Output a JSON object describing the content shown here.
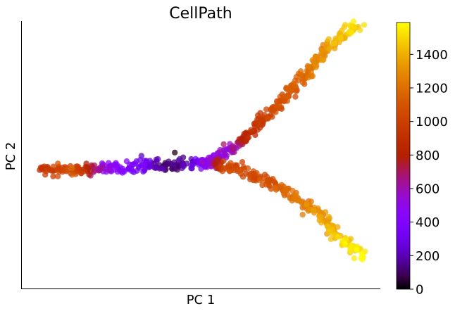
{
  "chart_data": {
    "type": "scatter",
    "title": "CellPath",
    "xlabel": "PC 1",
    "ylabel": "PC 2",
    "xticks": [],
    "yticks": [],
    "grid": false,
    "colorbar": {
      "label": "",
      "range": [
        0,
        1590
      ],
      "ticks": [
        0,
        200,
        400,
        600,
        800,
        1000,
        1200,
        1400
      ],
      "tick_labels": [
        "0",
        "200",
        "400",
        "600",
        "800",
        "1000",
        "1200",
        "1400"
      ],
      "colormap": "gnuplot"
    },
    "xlim": [
      -1.05,
      1.05
    ],
    "ylim": [
      -0.8,
      1.0
    ],
    "point_alpha": 0.75,
    "trajectory": {
      "description_of_paths": "Points follow a continuous trajectory; value colors each cell",
      "paths": [
        {
          "name": "",
          "nodes": [
            {
              "x": -0.94,
              "y": 0.0,
              "value": 900
            },
            {
              "x": -0.75,
              "y": 0.0,
              "value": 1050
            },
            {
              "x": -0.58,
              "y": 0.01,
              "value": 520
            },
            {
              "x": -0.35,
              "y": 0.02,
              "value": 330
            },
            {
              "x": -0.2,
              "y": 0.03,
              "value": 80
            },
            {
              "x": -0.07,
              "y": 0.03,
              "value": 180
            },
            {
              "x": 0.02,
              "y": 0.05,
              "value": 420
            }
          ]
        },
        {
          "name": "",
          "nodes": [
            {
              "x": 0.02,
              "y": 0.05,
              "value": 420
            },
            {
              "x": 0.18,
              "y": 0.14,
              "value": 560
            },
            {
              "x": 0.28,
              "y": 0.24,
              "value": 860
            },
            {
              "x": 0.4,
              "y": 0.38,
              "value": 1000
            },
            {
              "x": 0.53,
              "y": 0.53,
              "value": 1100
            },
            {
              "x": 0.63,
              "y": 0.66,
              "value": 1180
            },
            {
              "x": 0.72,
              "y": 0.79,
              "value": 1300
            },
            {
              "x": 0.82,
              "y": 0.9,
              "value": 1430
            },
            {
              "x": 0.92,
              "y": 0.97,
              "value": 1500
            }
          ]
        },
        {
          "name": "",
          "nodes": [
            {
              "x": 0.02,
              "y": 0.05,
              "value": 420
            },
            {
              "x": 0.15,
              "y": 0.02,
              "value": 1030
            },
            {
              "x": 0.3,
              "y": -0.03,
              "value": 1010
            },
            {
              "x": 0.44,
              "y": -0.11,
              "value": 1080
            },
            {
              "x": 0.57,
              "y": -0.2,
              "value": 1200
            },
            {
              "x": 0.68,
              "y": -0.3,
              "value": 1320
            },
            {
              "x": 0.78,
              "y": -0.42,
              "value": 1400
            },
            {
              "x": 0.88,
              "y": -0.52,
              "value": 1530
            },
            {
              "x": 0.96,
              "y": -0.58,
              "value": 1590
            }
          ]
        }
      ]
    }
  }
}
